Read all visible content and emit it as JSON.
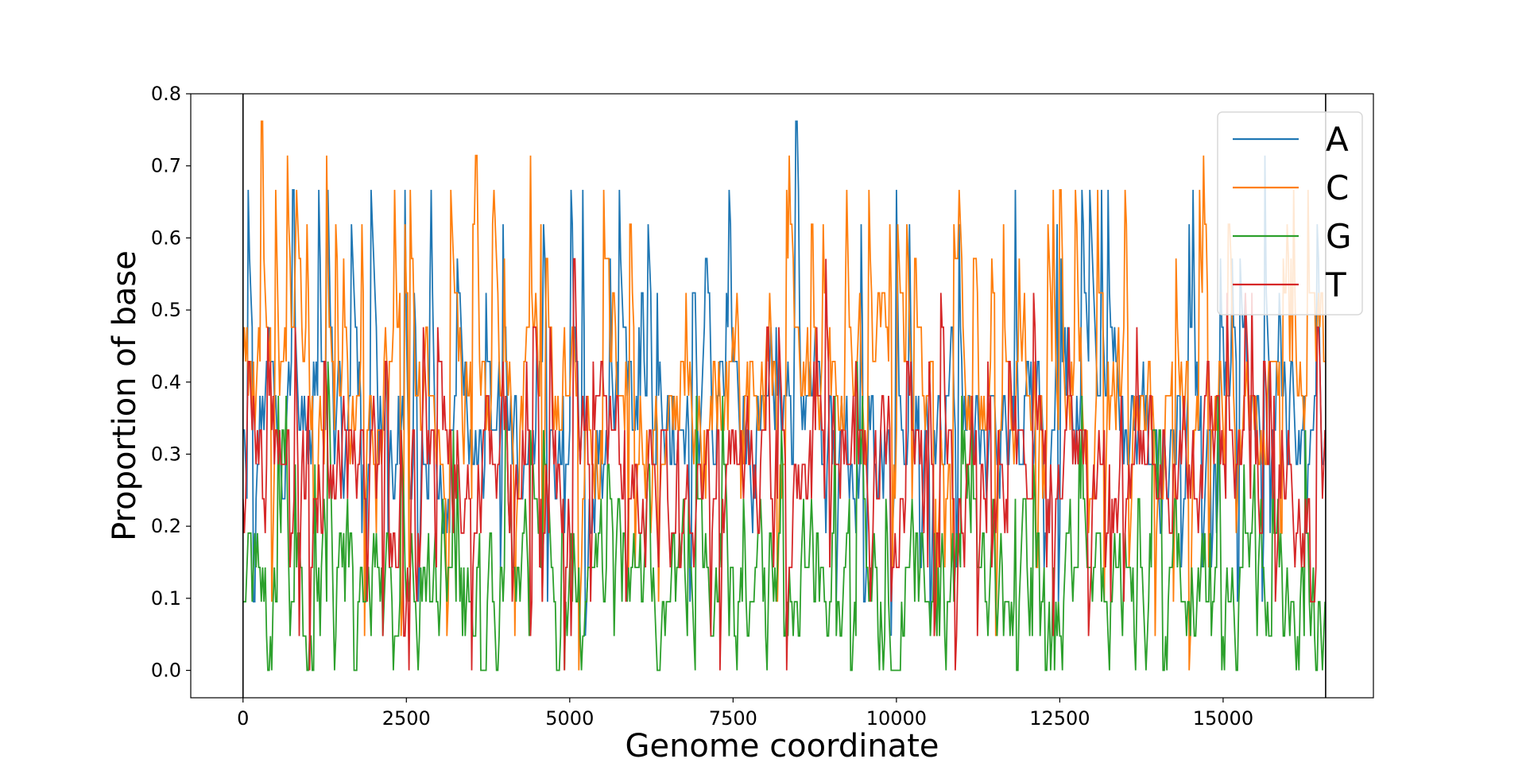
{
  "chart_data": {
    "type": "line",
    "title": "",
    "xlabel": "Genome coordinate",
    "ylabel": "Proportion of base",
    "xlim": [
      -800,
      17300
    ],
    "ylim": [
      -0.038,
      0.8
    ],
    "xticks": [
      0,
      2500,
      5000,
      7500,
      10000,
      12500,
      15000
    ],
    "xtick_labels": [
      "0",
      "2500",
      "5000",
      "7500",
      "10000",
      "12500",
      "15000"
    ],
    "yticks": [
      0.0,
      0.1,
      0.2,
      0.3,
      0.4,
      0.5,
      0.6,
      0.7,
      0.8
    ],
    "ytick_labels": [
      "0.0",
      "0.1",
      "0.2",
      "0.3",
      "0.4",
      "0.5",
      "0.6",
      "0.7",
      "0.8"
    ],
    "vlines": [
      0,
      16569
    ],
    "grid": false,
    "legend_position": "top-right",
    "window_size": 21,
    "x_step": 20,
    "x_range": [
      0,
      16569
    ],
    "series": [
      {
        "name": "A",
        "color": "#1f77b4",
        "typical_range": [
          0.19,
          0.48
        ],
        "min": 0.048,
        "max": 0.762,
        "peaks": [
          [
            2480,
            0.667
          ],
          [
            5200,
            0.667
          ],
          [
            7440,
            0.667
          ],
          [
            8470,
            0.762
          ],
          [
            13240,
            0.667
          ],
          [
            14540,
            0.667
          ]
        ]
      },
      {
        "name": "C",
        "color": "#ff7f0e",
        "typical_range": [
          0.24,
          0.52
        ],
        "min": 0.0,
        "max": 0.762,
        "peaks": [
          [
            290,
            0.762
          ],
          [
            500,
            0.667
          ],
          [
            3570,
            0.714
          ],
          [
            9580,
            0.667
          ],
          [
            10960,
            0.667
          ],
          [
            12510,
            0.667
          ]
        ]
      },
      {
        "name": "G",
        "color": "#2ca02c",
        "typical_range": [
          0.05,
          0.19
        ],
        "min": 0.0,
        "max": 0.476,
        "peaks": [
          [
            1300,
            0.429
          ],
          [
            9400,
            0.429
          ]
        ]
      },
      {
        "name": "T",
        "color": "#d62728",
        "typical_range": [
          0.19,
          0.38
        ],
        "min": 0.0,
        "max": 0.571,
        "peaks": [
          [
            5070,
            0.571
          ],
          [
            8920,
            0.571
          ],
          [
            15340,
            0.524
          ]
        ]
      }
    ]
  }
}
